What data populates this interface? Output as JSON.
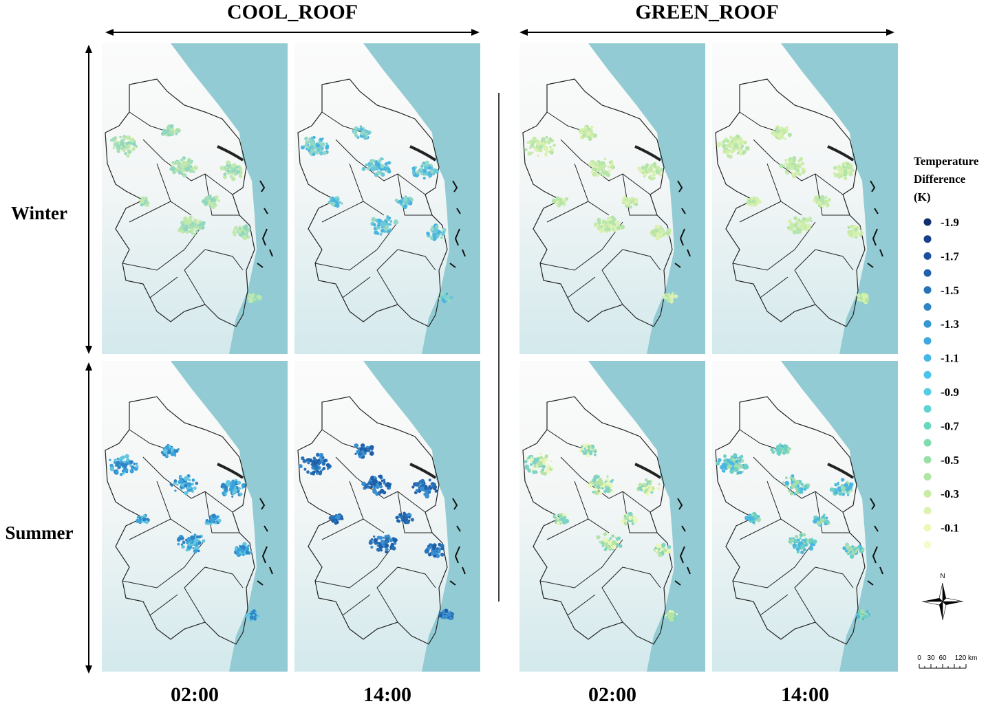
{
  "groups": [
    "COOL_ROOF",
    "GREEN_ROOF"
  ],
  "rows": [
    "Winter",
    "Summer"
  ],
  "times": [
    "02:00",
    "14:00",
    "02:00",
    "14:00"
  ],
  "legend": {
    "title": [
      "Temperature",
      "Difference",
      "(K)"
    ],
    "labels": [
      "-1.9",
      "-1.7",
      "-1.5",
      "-1.3",
      "-1.1",
      "-0.9",
      "-0.7",
      "-0.5",
      "-0.3",
      "-0.1"
    ],
    "colors": [
      "#142f6e",
      "#18408a",
      "#1c4f9c",
      "#2160ab",
      "#2872b8",
      "#2f85c4",
      "#3797d2",
      "#3fa8de",
      "#47b7e6",
      "#4cc3e8",
      "#52cde2",
      "#5dd3d2",
      "#6bd6bf",
      "#80dbae",
      "#98e0a6",
      "#b0e6a4",
      "#c7eca6",
      "#dcf2ad",
      "#ecf7bb",
      "#f6fbcc"
    ]
  },
  "compass": "N",
  "scale": [
    "0",
    "30",
    "60",
    "120 km"
  ]
}
